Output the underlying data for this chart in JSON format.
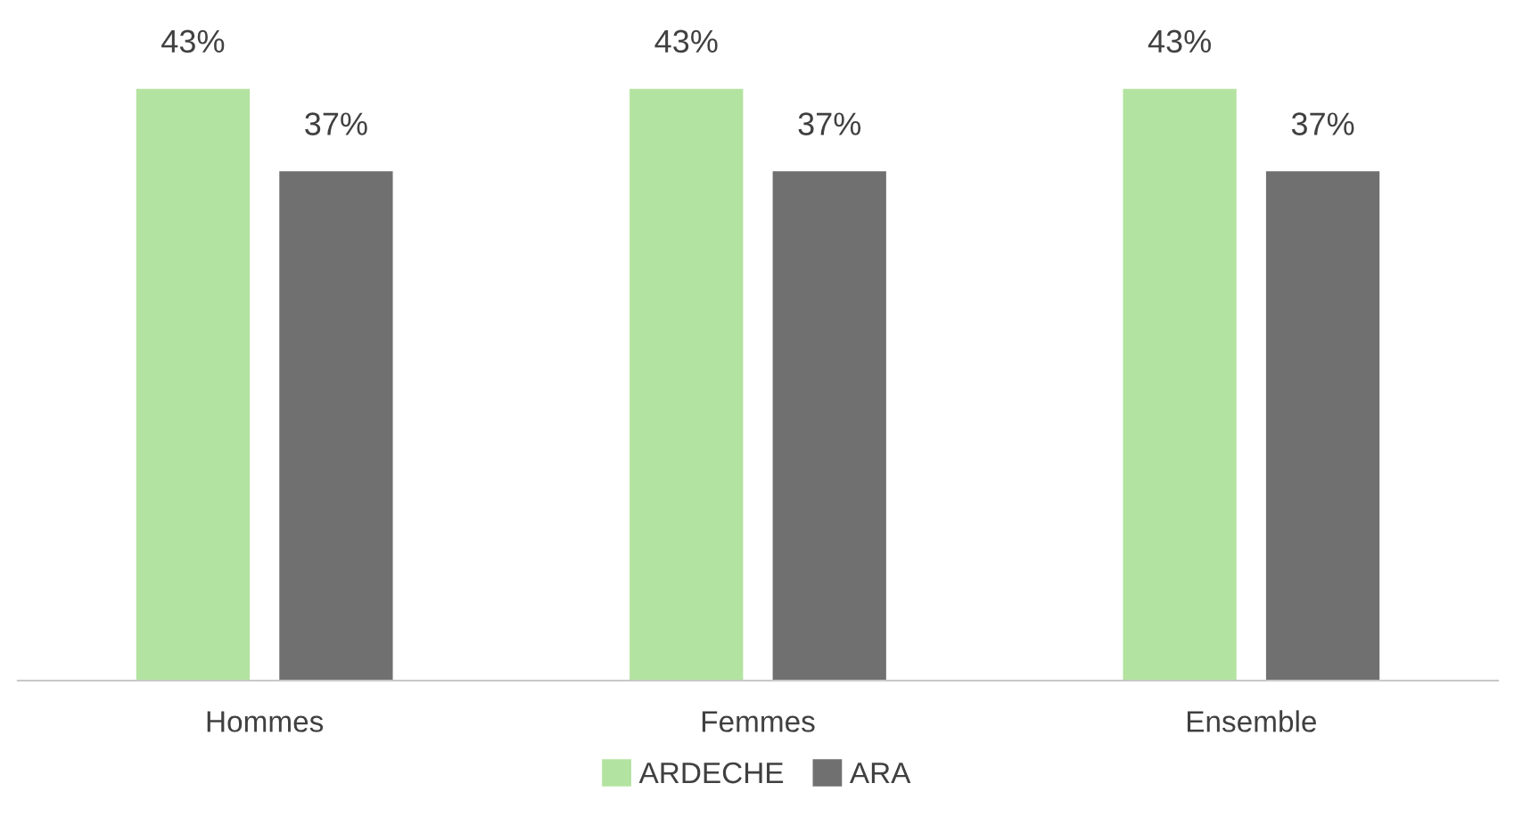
{
  "chart_data": {
    "type": "bar",
    "categories": [
      "Hommes",
      "Femmes",
      "Ensemble"
    ],
    "series": [
      {
        "name": "ARDECHE",
        "color": "#b3e3a0",
        "values": [
          43,
          43,
          43
        ],
        "value_labels": [
          "43%",
          "43%",
          "43%"
        ]
      },
      {
        "name": "ARA",
        "color": "#707070",
        "values": [
          37,
          37,
          37
        ],
        "value_labels": [
          "37%",
          "37%",
          "37%"
        ]
      }
    ],
    "legend": "bottom"
  }
}
